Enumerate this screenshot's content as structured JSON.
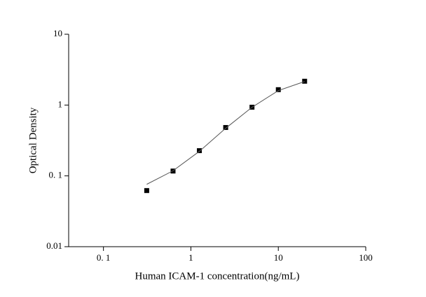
{
  "chart_data": {
    "type": "scatter",
    "xlabel": "Human ICAM-1 concentration(ng/mL)",
    "ylabel": "Optical Density",
    "x": [
      0.3125,
      0.625,
      1.25,
      2.5,
      5,
      10,
      20
    ],
    "series": [
      {
        "color": "#000000",
        "values": [
          0.062,
          0.117,
          0.227,
          0.482,
          0.933,
          1.65,
          2.17
        ],
        "marker": "square"
      },
      {
        "color": "#555555",
        "values": [
          0.076,
          0.118,
          0.222,
          0.47,
          0.93,
          1.6,
          2.15
        ],
        "marker": "line"
      }
    ],
    "xscale": "log",
    "yscale": "log",
    "xlim": [
      0.04,
      100
    ],
    "ylim": [
      0.01,
      10
    ],
    "xticks": [
      {
        "value": 0.1,
        "label": "0. 1"
      },
      1,
      10,
      100
    ],
    "yticks": [
      0.01,
      {
        "value": 0.1,
        "label": "0. 1"
      },
      1,
      10
    ],
    "grid": false
  }
}
